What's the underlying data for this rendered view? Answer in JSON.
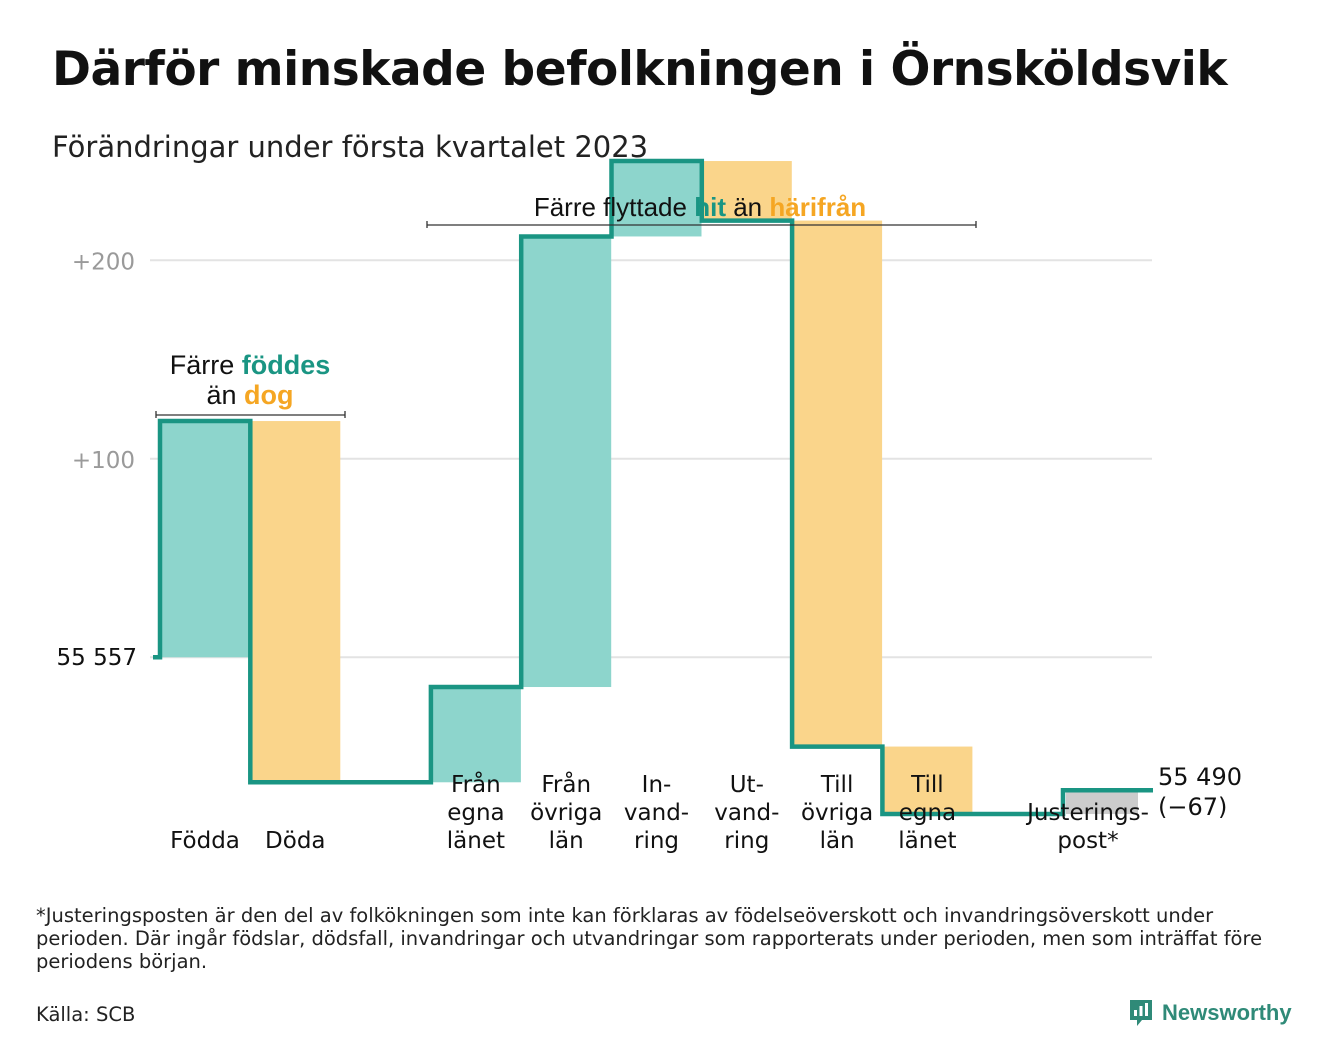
{
  "title": "Därför minskade befolkningen i Örnsköldsvik",
  "subtitle": "Förändringar under första kvartalet 2023",
  "footnote": "*Justeringsposten är den del av folkökningen som inte kan förklaras av födelseöverskott och invandringsöverskott under perioden. Där ingår födslar, dödsfall, invandringar och utvandringar som rapporterats under perioden, men som inträffat före periodens början.",
  "source": "Källa: SCB",
  "brand": "Newsworthy",
  "colors": {
    "positive": "#8dd5cc",
    "negative": "#fad58b",
    "adjustment": "#cccccc",
    "line": "#1a9583",
    "hit": "#1a9583",
    "harifran": "#f5a623",
    "grid": "#e3e3e3",
    "gridLabel": "#9a9a9a"
  },
  "annotations": {
    "births_deaths": {
      "line1": "Färre",
      "w1": "föddes",
      "line2a": "än",
      "w2": "dog"
    },
    "migration": {
      "a": "Färre flyttade",
      "w1": "hit",
      "b": "än",
      "w2": "härifrån"
    }
  },
  "chart_data": {
    "type": "bar",
    "subtype": "waterfall",
    "start_value": 55557,
    "start_label": "55 557",
    "end_value": 55490,
    "end_label": "55 490",
    "end_change_label": "(−67)",
    "ylim": [
      -82,
      248
    ],
    "gridlines": [
      {
        "offset": 0,
        "label": ""
      },
      {
        "offset": 100,
        "label": "+100"
      },
      {
        "offset": 200,
        "label": "+200"
      }
    ],
    "steps": [
      {
        "label": [
          "Födda"
        ],
        "value": 119,
        "kind": "positive"
      },
      {
        "label": [
          "Döda"
        ],
        "value": -182,
        "kind": "negative"
      },
      {
        "label": [
          "Från",
          "egna",
          "länet"
        ],
        "value": 48,
        "kind": "positive"
      },
      {
        "label": [
          "Från",
          "övriga",
          "län"
        ],
        "value": 227,
        "kind": "positive"
      },
      {
        "label": [
          "In-",
          "vand-",
          "ring"
        ],
        "value": 38,
        "kind": "positive"
      },
      {
        "label": [
          "Ut-",
          "vand-",
          "ring"
        ],
        "value": -30,
        "kind": "negative"
      },
      {
        "label": [
          "Till",
          "övriga",
          "län"
        ],
        "value": -265,
        "kind": "negative"
      },
      {
        "label": [
          "Till",
          "egna",
          "länet"
        ],
        "value": -34,
        "kind": "negative"
      },
      {
        "label": [
          "Justerings-",
          "post*"
        ],
        "value": 12,
        "kind": "adjustment"
      }
    ]
  }
}
